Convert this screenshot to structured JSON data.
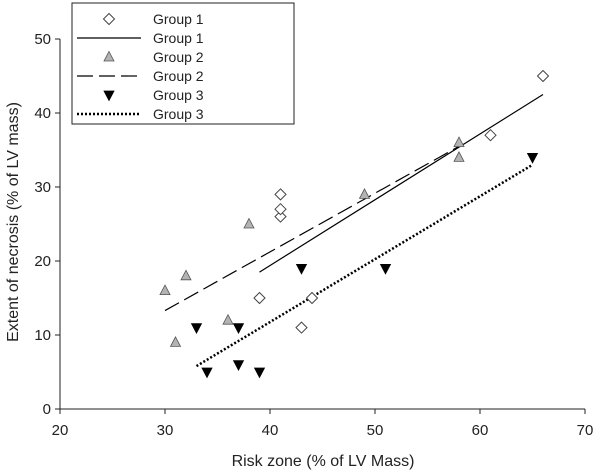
{
  "chart_data": {
    "type": "scatter",
    "xlabel": "Risk zone (% of LV Mass)",
    "ylabel": "Extent of necrosis (% of LV mass)",
    "xlim": [
      20,
      70
    ],
    "ylim": [
      0,
      50
    ],
    "xticks": [
      "20",
      "30",
      "40",
      "50",
      "60",
      "70"
    ],
    "yticks": [
      "0",
      "10",
      "20",
      "30",
      "40",
      "50"
    ],
    "grid": false,
    "legend_position": "top-left",
    "legend": [
      {
        "label": "Group 1",
        "kind": "marker",
        "marker": "diamond"
      },
      {
        "label": "Group 1",
        "kind": "line",
        "dash": "solid"
      },
      {
        "label": "Group 2",
        "kind": "marker",
        "marker": "triangle-up"
      },
      {
        "label": "Group 2",
        "kind": "line",
        "dash": "long-dash"
      },
      {
        "label": "Group 3",
        "kind": "marker",
        "marker": "triangle-down"
      },
      {
        "label": "Group 3",
        "kind": "line",
        "dash": "dotted"
      }
    ],
    "series": [
      {
        "name": "Group 1",
        "marker": "diamond",
        "fill": "#ffffff",
        "points": [
          [
            39,
            15
          ],
          [
            41,
            26
          ],
          [
            41,
            27
          ],
          [
            41,
            29
          ],
          [
            43,
            11
          ],
          [
            44,
            15
          ],
          [
            61,
            37
          ],
          [
            66,
            45
          ]
        ],
        "fit": {
          "x": [
            39,
            66
          ],
          "y": [
            18.5,
            42.5
          ],
          "dash": "solid"
        }
      },
      {
        "name": "Group 2",
        "marker": "triangle-up",
        "fill": "#b3b3b3",
        "points": [
          [
            30,
            16
          ],
          [
            31,
            9
          ],
          [
            32,
            18
          ],
          [
            36,
            12
          ],
          [
            38,
            25
          ],
          [
            49,
            29
          ],
          [
            58,
            34
          ],
          [
            58,
            36
          ]
        ],
        "fit": {
          "x": [
            30,
            58
          ],
          "y": [
            13.3,
            35.5
          ],
          "dash": "long-dash"
        }
      },
      {
        "name": "Group 3",
        "marker": "triangle-down",
        "fill": "#000000",
        "points": [
          [
            33,
            11
          ],
          [
            34,
            5
          ],
          [
            37,
            6
          ],
          [
            37,
            11
          ],
          [
            39,
            5
          ],
          [
            43,
            19
          ],
          [
            51,
            19
          ],
          [
            65,
            34
          ]
        ],
        "fit": {
          "x": [
            33,
            65
          ],
          "y": [
            5.8,
            33
          ],
          "dash": "dotted"
        }
      }
    ]
  }
}
